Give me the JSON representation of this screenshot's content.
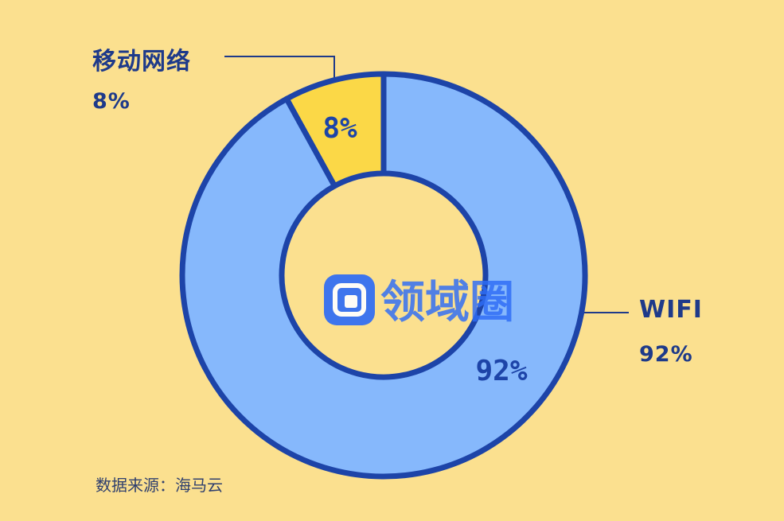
{
  "chart_data": {
    "type": "pie",
    "donut": true,
    "slices": [
      {
        "label": "移动网络",
        "value": 8,
        "display": "8%",
        "color": "#fbd847"
      },
      {
        "label": "WIFI",
        "value": 92,
        "display": "92%",
        "color": "#86b8fc"
      }
    ]
  },
  "source_note": "数据来源：海马云",
  "watermark": {
    "text": "领域圈"
  },
  "colors": {
    "background": "#fbe08f",
    "outline": "#1d44a8",
    "label_text": "#1e3a8a"
  }
}
